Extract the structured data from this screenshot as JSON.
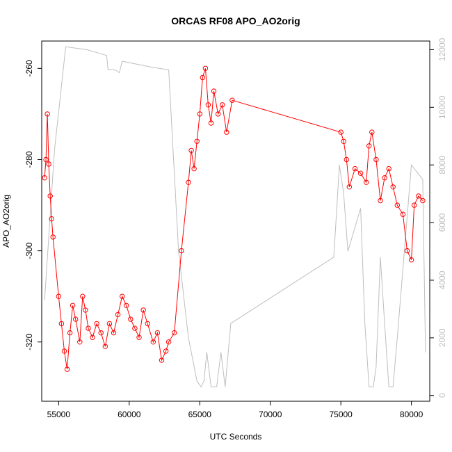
{
  "chart_data": {
    "type": "line",
    "title": "ORCAS RF08 APO_AO2orig",
    "xlabel": "UTC Seconds",
    "ylabel": "APO_AO2orig",
    "xlim": [
      53800,
      81300
    ],
    "ylim": [
      -333,
      -254
    ],
    "y2lim": [
      -200,
      12300
    ],
    "grid": false,
    "x_ticks": [
      55000,
      60000,
      65000,
      70000,
      75000,
      80000
    ],
    "y_ticks": [
      -320,
      -300,
      -280,
      -260
    ],
    "y2_ticks": [
      0,
      2000,
      4000,
      6000,
      8000,
      10000,
      12000
    ],
    "series": [
      {
        "color": "#ff0000",
        "marker": "open-circle",
        "axis": "left",
        "x": [
          54000,
          54100,
          54200,
          54300,
          54400,
          54500,
          54600,
          55000,
          55200,
          55400,
          55600,
          55800,
          56000,
          56200,
          56500,
          56700,
          56900,
          57100,
          57400,
          57700,
          58000,
          58300,
          58600,
          58900,
          59200,
          59500,
          59800,
          60100,
          60400,
          60700,
          61000,
          61300,
          61700,
          62000,
          62300,
          62600,
          62800,
          63200,
          63700,
          64200,
          64400,
          64600,
          64800,
          65000,
          65200,
          65400,
          65600,
          65800,
          66000,
          66300,
          66600,
          66900,
          67300,
          75000,
          75200,
          75400,
          75600,
          76000,
          76400,
          76800,
          77000,
          77200,
          77500,
          77800,
          78100,
          78400,
          78700,
          79000,
          79400,
          79700,
          80000,
          80200,
          80500,
          80800
        ],
        "y": [
          -284,
          -280,
          -270,
          -281,
          -288,
          -293,
          -297,
          -310,
          -316,
          -322,
          -326,
          -318,
          -312,
          -315,
          -320,
          -310,
          -313,
          -317,
          -319,
          -316,
          -318,
          -321,
          -316,
          -318,
          -314,
          -310,
          -312,
          -315,
          -317,
          -319,
          -313,
          -316,
          -320,
          -318,
          -324,
          -322,
          -320,
          -318,
          -300,
          -285,
          -278,
          -282,
          -276,
          -270,
          -262,
          -260,
          -268,
          -272,
          -265,
          -270,
          -268,
          -274,
          -267,
          -274,
          -276,
          -280,
          -286,
          -282,
          -283,
          -285,
          -277,
          -274,
          -280,
          -289,
          -284,
          -282,
          -286,
          -290,
          -292,
          -300,
          -302,
          -290,
          -288,
          -289
        ]
      },
      {
        "color": "#bebebe",
        "marker": "none",
        "axis": "right",
        "x": [
          54000,
          54700,
          55500,
          57000,
          58400,
          58500,
          59000,
          59300,
          59500,
          61500,
          62800,
          63500,
          64200,
          64800,
          65100,
          65300,
          65500,
          65800,
          66200,
          66500,
          66800,
          67200,
          74500,
          74900,
          75200,
          75500,
          76400,
          76700,
          77000,
          77300,
          77500,
          77800,
          78100,
          78400,
          78700,
          79000,
          80000,
          80800,
          81000
        ],
        "y": [
          3300,
          8500,
          12100,
          12000,
          11800,
          11300,
          11300,
          11200,
          11600,
          11400,
          11300,
          5000,
          2000,
          500,
          300,
          500,
          1500,
          300,
          300,
          1500,
          300,
          2500,
          4800,
          8000,
          7000,
          5000,
          6500,
          2500,
          300,
          300,
          1000,
          4800,
          2500,
          300,
          300,
          2000,
          8000,
          7500,
          1500
        ]
      }
    ]
  }
}
